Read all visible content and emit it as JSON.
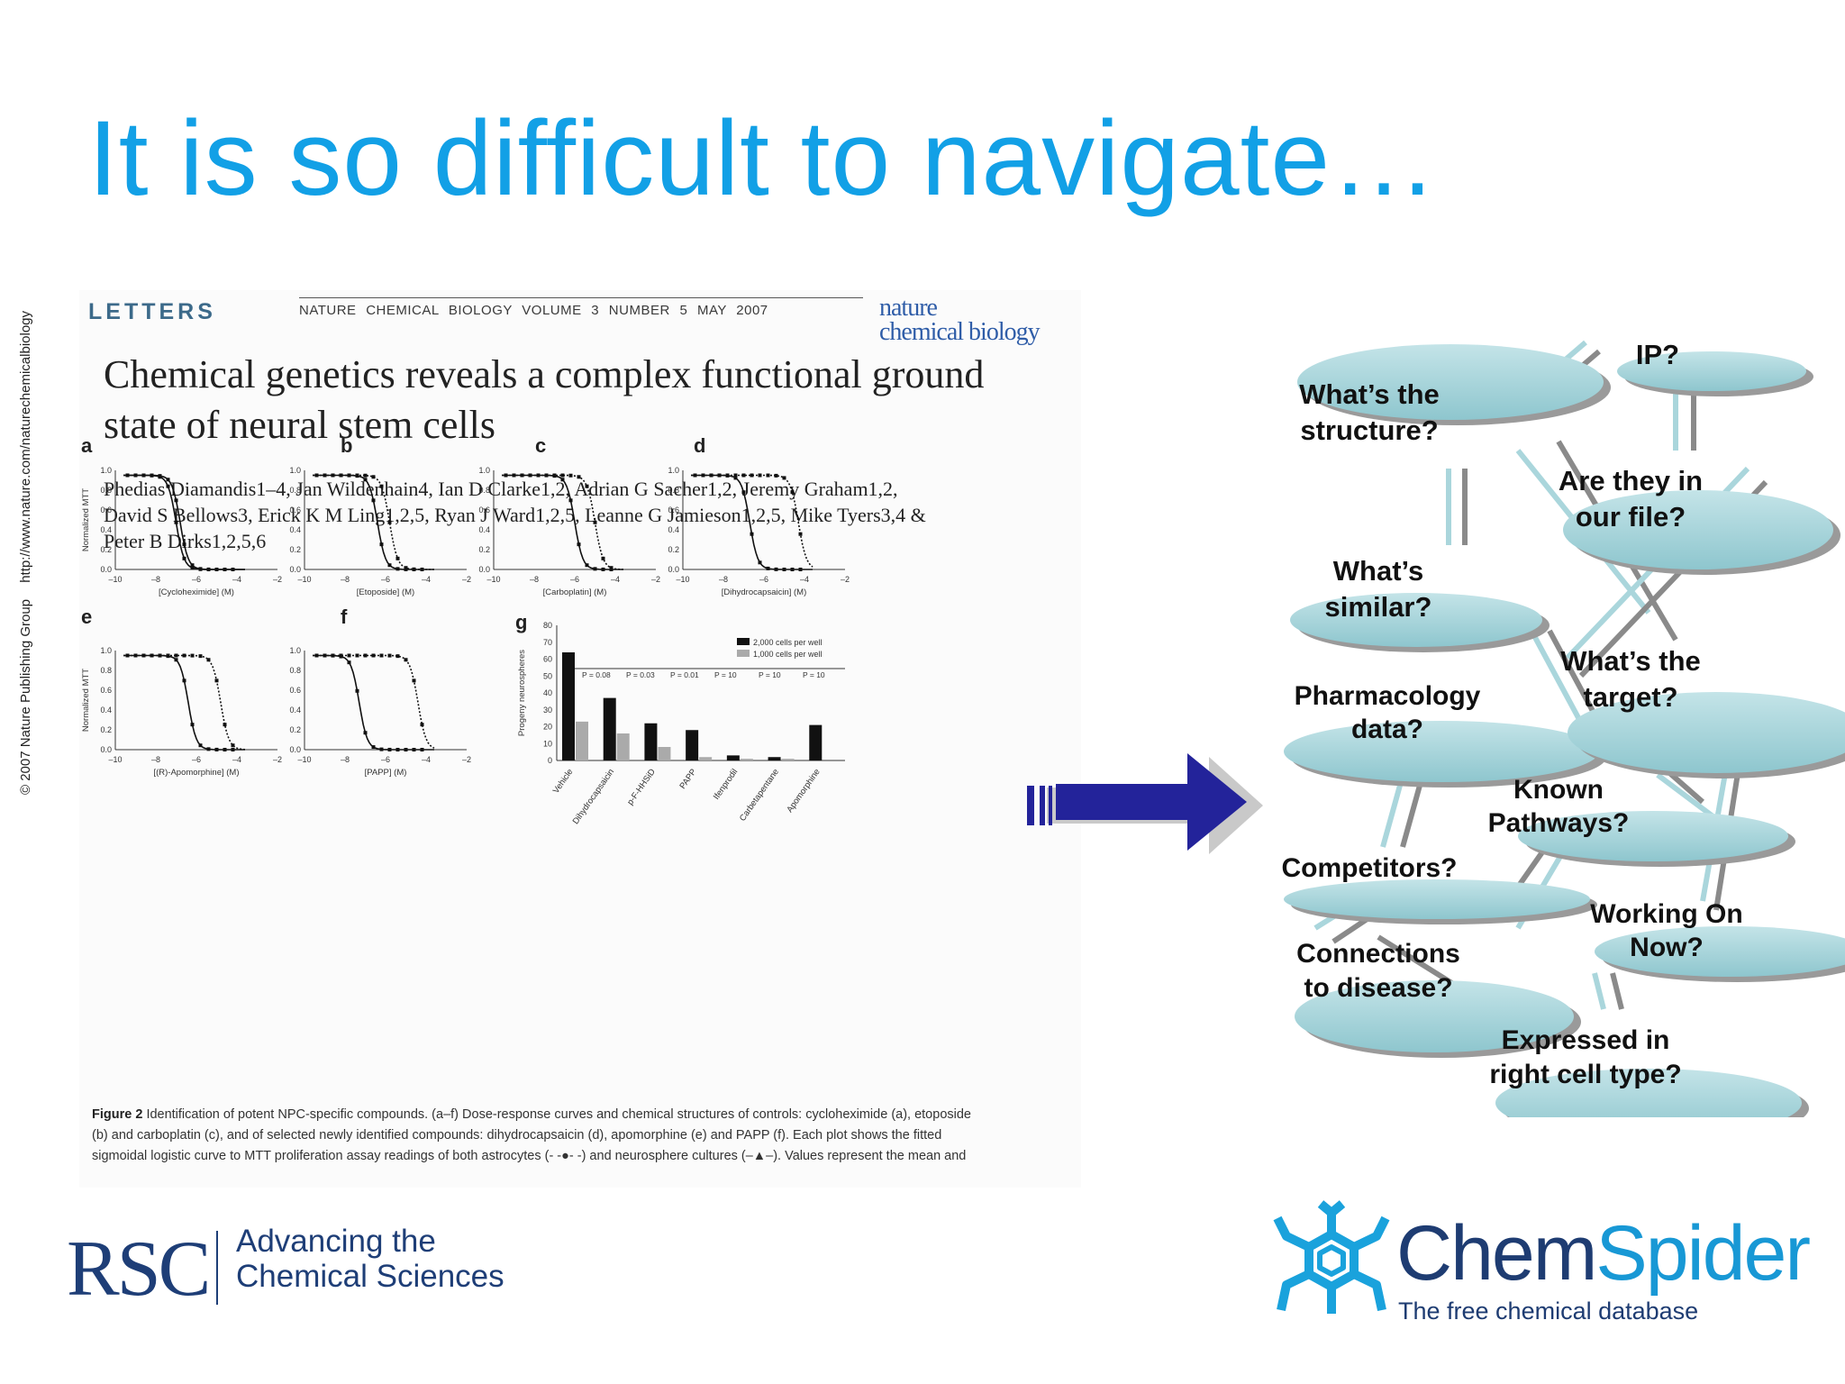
{
  "slide": {
    "title": "It is so difficult to navigate…"
  },
  "paper": {
    "section": "LETTERS",
    "journal_line": "NATURE CHEMICAL BIOLOGY  VOLUME 3  NUMBER 5  MAY 2007",
    "journal_logo_1": "nature",
    "journal_logo_2": "chemical biology",
    "title_line1": "Chemical genetics reveals a complex functional ground",
    "title_line2": "state of neural stem cells",
    "authors_line1": "Phedias Diamandis1–4, Jan Wildenhain4, Ian D Clarke1,2, Adrian G Sacher1,2, Jeremy Graham1,2,",
    "authors_line2": "David S Bellows3, Erick K M Ling1,2,5, Ryan J Ward1,2,5, Leanne G Jamieson1,2,5, Mike Tyers3,4 &",
    "authors_line3": "Peter B Dirks1,2,5,6",
    "copyright_1": "© 2007 Nature Publishing Group",
    "copyright_2": "http://www.nature.com/naturechemicalbiology",
    "caption_lead": "Figure 2",
    "caption_line1": "Identification of potent NPC-specific compounds. (a–f) Dose-response curves and chemical structures of controls: cycloheximide (a), etoposide",
    "caption_line2": "(b) and carboplatin (c), and of selected newly identified compounds: dihydrocapsaicin (d), apomorphine (e) and PAPP (f). Each plot shows the fitted",
    "caption_line3": "sigmoidal logistic curve to MTT proliferation assay readings of both astrocytes (- -●- -) and neurosphere cultures (–▲–). Values represent the mean and"
  },
  "chart_data": [
    {
      "panel": "a",
      "type": "line",
      "xlabel": "[Cycloheximide] (M)",
      "ylabel": "Normalized MTT",
      "xticks": [
        "–10",
        "–8",
        "–6",
        "–4",
        "–2"
      ],
      "yticks": [
        "0.0",
        "0.2",
        "0.4",
        "0.6",
        "0.8",
        "1.0"
      ],
      "xlim": [
        -10,
        -2
      ],
      "ylim": [
        0,
        1
      ],
      "curves": [
        {
          "style": "solid",
          "ec50": -7.0
        },
        {
          "style": "solid",
          "ec50": -6.8
        }
      ]
    },
    {
      "panel": "b",
      "type": "line",
      "xlabel": "[Etoposide] (M)",
      "ylabel": "",
      "xticks": [
        "–10",
        "–8",
        "–6",
        "–4",
        "–2"
      ],
      "yticks": [
        "0.0",
        "0.2",
        "0.4",
        "0.6",
        "0.8",
        "1.0"
      ],
      "xlim": [
        -10,
        -2
      ],
      "ylim": [
        0,
        1
      ],
      "curves": [
        {
          "style": "solid",
          "ec50": -6.4
        },
        {
          "style": "dotted",
          "ec50": -5.8
        }
      ]
    },
    {
      "panel": "c",
      "type": "line",
      "xlabel": "[Carboplatin] (M)",
      "ylabel": "",
      "xticks": [
        "–10",
        "–8",
        "–6",
        "–4",
        "–2"
      ],
      "yticks": [
        "0.0",
        "0.2",
        "0.4",
        "0.6",
        "0.8",
        "1.0"
      ],
      "xlim": [
        -10,
        -2
      ],
      "ylim": [
        0,
        1
      ],
      "curves": [
        {
          "style": "solid",
          "ec50": -6.0
        },
        {
          "style": "dotted",
          "ec50": -5.0
        }
      ]
    },
    {
      "panel": "d",
      "type": "line",
      "xlabel": "[Dihydrocapsaicin] (M)",
      "ylabel": "",
      "xticks": [
        "–10",
        "–8",
        "–6",
        "–4",
        "–2"
      ],
      "yticks": [
        "0.0",
        "0.2",
        "0.4",
        "0.6",
        "0.8",
        "1.0"
      ],
      "xlim": [
        -10,
        -2
      ],
      "ylim": [
        0,
        1
      ],
      "curves": [
        {
          "style": "solid",
          "ec50": -6.7
        },
        {
          "style": "dotted",
          "ec50": -4.3
        }
      ]
    },
    {
      "panel": "e",
      "type": "line",
      "xlabel": "[(R)-Apomorphine] (M)",
      "ylabel": "Normalized MTT",
      "xticks": [
        "–10",
        "–8",
        "–6",
        "–4",
        "–2"
      ],
      "yticks": [
        "0.0",
        "0.2",
        "0.4",
        "0.6",
        "0.8",
        "1.0"
      ],
      "xlim": [
        -10,
        -2
      ],
      "ylim": [
        0,
        1
      ],
      "curves": [
        {
          "style": "solid",
          "ec50": -6.4
        },
        {
          "style": "dotted",
          "ec50": -4.8
        }
      ]
    },
    {
      "panel": "f",
      "type": "line",
      "xlabel": "[PAPP] (M)",
      "ylabel": "",
      "xticks": [
        "–10",
        "–8",
        "–6",
        "–4",
        "–2"
      ],
      "yticks": [
        "0.0",
        "0.2",
        "0.4",
        "0.6",
        "0.8",
        "1.0"
      ],
      "xlim": [
        -10,
        -2
      ],
      "ylim": [
        0,
        1
      ],
      "curves": [
        {
          "style": "solid",
          "ec50": -7.3
        },
        {
          "style": "dotted",
          "ec50": -4.4
        }
      ]
    },
    {
      "panel": "g",
      "type": "bar",
      "ylabel": "Progeny neurospheres",
      "ylim": [
        0,
        80
      ],
      "yticks": [
        "0",
        "10",
        "20",
        "30",
        "40",
        "50",
        "60",
        "70",
        "80"
      ],
      "categories": [
        "Vehicle",
        "Dihydrocapsaicin",
        "p-F-HHSiD",
        "PAPP",
        "Ifenprodil",
        "Carbetapentane",
        "Apomorphine"
      ],
      "series": [
        {
          "name": "2,000 cells per well",
          "color": "#111111",
          "values": [
            64,
            37,
            22,
            18,
            3,
            2,
            21
          ]
        },
        {
          "name": "1,000 cells per well",
          "color": "#aaaaaa",
          "values": [
            23,
            16,
            8,
            2,
            1,
            1,
            0
          ]
        }
      ],
      "pvalues": [
        "P = 0.08",
        "P = 0.03",
        "P = 0.01",
        "P = 10",
        "P = 10",
        "P = 10"
      ]
    }
  ],
  "concept_map": {
    "nodes": [
      {
        "id": "structure",
        "line1": "What’s the",
        "line2": "structure?"
      },
      {
        "id": "ip",
        "line1": "IP?",
        "line2": ""
      },
      {
        "id": "in-file",
        "line1": "Are they in",
        "line2": "our file?"
      },
      {
        "id": "similar",
        "line1": "What’s",
        "line2": "similar?"
      },
      {
        "id": "pharmacology",
        "line1": "Pharmacology",
        "line2": "data?"
      },
      {
        "id": "target",
        "line1": "What’s the",
        "line2": "target?"
      },
      {
        "id": "pathways",
        "line1": "Known",
        "line2": "Pathways?"
      },
      {
        "id": "competitors",
        "line1": "Competitors?",
        "line2": ""
      },
      {
        "id": "working-on",
        "line1": "Working On",
        "line2": "Now?"
      },
      {
        "id": "disease",
        "line1": "Connections",
        "line2": "to disease?"
      },
      {
        "id": "cell-type",
        "line1": "Expressed in",
        "line2": "right cell type?"
      }
    ]
  },
  "logos": {
    "rsc_letters": "RSC",
    "rsc_tagline_1": "Advancing the",
    "rsc_tagline_2": "Chemical Sciences",
    "chemspider_1": "Chem",
    "chemspider_2": "Spider",
    "chemspider_tagline": "The free chemical database"
  },
  "colors": {
    "title": "#12a0e6",
    "arrow": "#23239a",
    "bubble": "#9fcfd6",
    "rsc": "#1e3e77",
    "chemspider_dark": "#1e3c72",
    "chemspider_light": "#1898d5"
  }
}
